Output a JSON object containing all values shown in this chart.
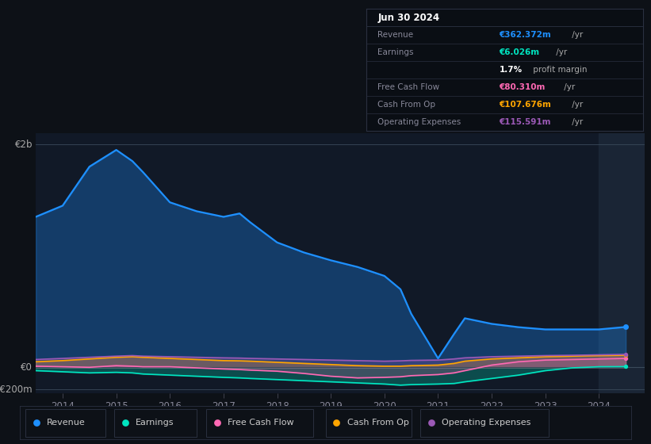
{
  "bg_color": "#0d1117",
  "plot_bg_color": "#111927",
  "title_date": "Jun 30 2024",
  "info_box": {
    "Revenue": {
      "label": "Revenue",
      "value": "€362.372m",
      "suffix": " /yr",
      "color": "#1e90ff"
    },
    "Earnings": {
      "label": "Earnings",
      "value": "€6.026m",
      "suffix": " /yr",
      "color": "#00e5c0"
    },
    "profit_margin": {
      "label": "",
      "value": "1.7%",
      "suffix": " profit margin",
      "color": "#ffffff"
    },
    "Free Cash Flow": {
      "label": "Free Cash Flow",
      "value": "€80.310m",
      "suffix": " /yr",
      "color": "#ff69b4"
    },
    "Cash From Op": {
      "label": "Cash From Op",
      "value": "€107.676m",
      "suffix": " /yr",
      "color": "#ffa500"
    },
    "Operating Expenses": {
      "label": "Operating Expenses",
      "value": "€115.591m",
      "suffix": " /yr",
      "color": "#9b59b6"
    }
  },
  "years": [
    2013.5,
    2014.0,
    2014.5,
    2015.0,
    2015.3,
    2015.5,
    2016.0,
    2016.5,
    2017.0,
    2017.3,
    2017.5,
    2018.0,
    2018.5,
    2019.0,
    2019.5,
    2020.0,
    2020.3,
    2020.5,
    2021.0,
    2021.3,
    2021.5,
    2022.0,
    2022.5,
    2023.0,
    2023.5,
    2024.0,
    2024.5
  ],
  "revenue": [
    1350,
    1450,
    1800,
    1950,
    1850,
    1750,
    1480,
    1400,
    1350,
    1380,
    1300,
    1120,
    1030,
    960,
    900,
    820,
    700,
    480,
    80,
    300,
    440,
    390,
    360,
    340,
    340,
    340,
    362
  ],
  "earnings": [
    -30,
    -40,
    -50,
    -45,
    -50,
    -60,
    -70,
    -80,
    -90,
    -95,
    -100,
    -110,
    -120,
    -130,
    -140,
    -150,
    -160,
    -155,
    -150,
    -145,
    -130,
    -100,
    -70,
    -30,
    -5,
    5,
    6
  ],
  "free_cash_flow": [
    10,
    5,
    0,
    15,
    10,
    5,
    5,
    -5,
    -15,
    -20,
    -25,
    -35,
    -55,
    -80,
    -95,
    -90,
    -85,
    -75,
    -65,
    -50,
    -30,
    20,
    50,
    65,
    70,
    75,
    80
  ],
  "cash_from_op": [
    50,
    60,
    75,
    90,
    95,
    90,
    80,
    70,
    60,
    58,
    55,
    45,
    35,
    25,
    15,
    10,
    10,
    15,
    20,
    35,
    55,
    75,
    85,
    95,
    100,
    105,
    108
  ],
  "operating_expenses": [
    70,
    80,
    90,
    100,
    105,
    100,
    95,
    90,
    85,
    83,
    80,
    75,
    70,
    65,
    60,
    55,
    58,
    62,
    65,
    75,
    85,
    95,
    100,
    105,
    108,
    112,
    116
  ],
  "ylim": [
    -230,
    2100
  ],
  "shaded_x_start": 2024.0,
  "shaded_x_end": 2025.0,
  "xlim_start": 2013.5,
  "xlim_end": 2024.85,
  "xticks": [
    2014,
    2015,
    2016,
    2017,
    2018,
    2019,
    2020,
    2021,
    2022,
    2023,
    2024
  ],
  "legend": [
    {
      "label": "Revenue",
      "color": "#1e90ff"
    },
    {
      "label": "Earnings",
      "color": "#00e5c0"
    },
    {
      "label": "Free Cash Flow",
      "color": "#ff69b4"
    },
    {
      "label": "Cash From Op",
      "color": "#ffa500"
    },
    {
      "label": "Operating Expenses",
      "color": "#9b59b6"
    }
  ]
}
